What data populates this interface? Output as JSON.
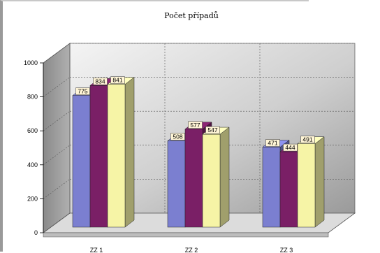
{
  "chart_data": {
    "type": "bar",
    "title": "Počet případů",
    "categories": [
      "ZZ 1",
      "ZZ 2",
      "ZZ 3"
    ],
    "series": [
      {
        "values": [
          775,
          508,
          471
        ],
        "color": "#7b7fd0"
      },
      {
        "values": [
          834,
          577,
          444
        ],
        "color": "#7a1f66"
      },
      {
        "values": [
          841,
          547,
          491
        ],
        "color": "#f6f4a6"
      }
    ],
    "ylim": [
      0,
      1000
    ],
    "yticks": [
      0,
      200,
      400,
      600,
      800,
      1000
    ],
    "grid": true,
    "style": "3d-clustered"
  }
}
